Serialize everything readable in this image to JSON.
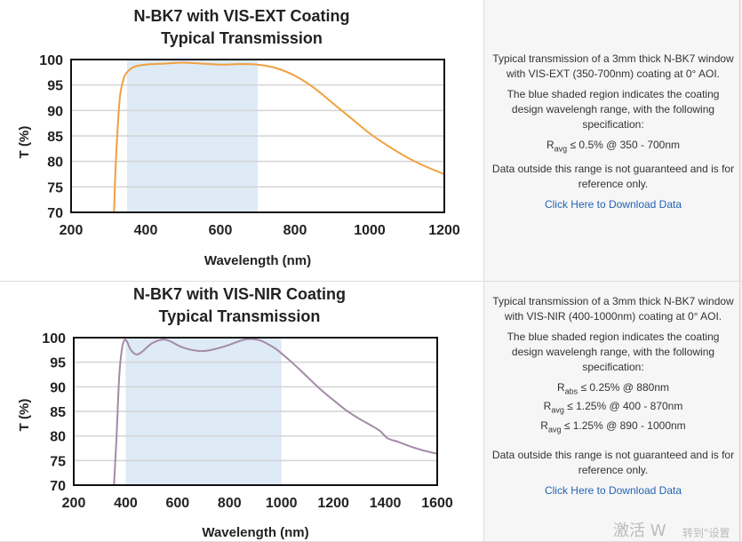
{
  "panels": [
    {
      "description": "Typical transmission of a 3mm thick N-BK7 window with VIS-EXT (350-700nm) coating at 0° AOI.",
      "shaded_note": "The blue shaded region indicates the coating design wavelengh range, with the following specification:",
      "specs": [
        {
          "sym": "R",
          "sub": "avg",
          "text": "≤ 0.5% @ 350 - 700nm"
        }
      ],
      "disclaimer": "Data outside this range is not guaranteed and is for reference only.",
      "download_link": "Click Here to Download Data"
    },
    {
      "description": "Typical transmission of a 3mm thick N-BK7 window with VIS-NIR (400-1000nm) coating at 0° AOI.",
      "shaded_note": "The blue shaded region indicates the coating design wavelengh range, with the following specification:",
      "specs": [
        {
          "sym": "R",
          "sub": "abs",
          "text": "≤ 0.25% @ 880nm"
        },
        {
          "sym": "R",
          "sub": "avg",
          "text": "≤ 1.25% @ 400 - 870nm"
        },
        {
          "sym": "R",
          "sub": "avg",
          "text": "≤ 1.25% @ 890 - 1000nm"
        }
      ],
      "disclaimer": "Data outside this range is not guaranteed and is for reference only.",
      "download_link": "Click Here to Download Data"
    }
  ],
  "watermark": {
    "line1": "激活 W",
    "line2": "转到\"设置"
  },
  "chart_data": [
    {
      "type": "line",
      "title": "N-BK7 with VIS-EXT Coating",
      "subtitle": "Typical Transmission",
      "xlabel": "Wavelength (nm)",
      "ylabel": "T (%)",
      "xlim": [
        200,
        1200
      ],
      "ylim": [
        70,
        100
      ],
      "xticks": [
        200,
        400,
        600,
        800,
        1000,
        1200
      ],
      "yticks": [
        70,
        75,
        80,
        85,
        90,
        95,
        100
      ],
      "grid": true,
      "line_color": "#f0a040",
      "shaded_region": [
        350,
        700
      ],
      "shade_color": "#deeaf6",
      "x": [
        315,
        320,
        330,
        340,
        350,
        370,
        400,
        450,
        500,
        550,
        600,
        650,
        700,
        750,
        800,
        850,
        900,
        950,
        1000,
        1050,
        1100,
        1150,
        1200
      ],
      "y": [
        70,
        80,
        92,
        96,
        97.5,
        98.6,
        99,
        99.2,
        99.4,
        99.2,
        99,
        99.1,
        99,
        98.3,
        96.8,
        94.5,
        91.5,
        88.5,
        85.5,
        83,
        80.8,
        79,
        77.5
      ]
    },
    {
      "type": "line",
      "title": "N-BK7 with VIS-NIR Coating",
      "subtitle": "Typical Transmission",
      "xlabel": "Wavelength (nm)",
      "ylabel": "T (%)",
      "xlim": [
        200,
        1600
      ],
      "ylim": [
        70,
        100
      ],
      "xticks": [
        200,
        400,
        600,
        800,
        1000,
        1200,
        1400,
        1600
      ],
      "yticks": [
        70,
        75,
        80,
        85,
        90,
        95,
        100
      ],
      "grid": true,
      "line_color": "#a48aa8",
      "shaded_region": [
        400,
        1000
      ],
      "shade_color": "#deeaf6",
      "x": [
        355,
        365,
        375,
        385,
        395,
        405,
        420,
        440,
        460,
        500,
        540,
        570,
        620,
        680,
        720,
        780,
        850,
        880,
        920,
        970,
        1000,
        1050,
        1100,
        1150,
        1200,
        1250,
        1300,
        1350,
        1380,
        1410,
        1450,
        1500,
        1550,
        1600
      ],
      "y": [
        70,
        80,
        92,
        97.5,
        99.5,
        99.2,
        97.5,
        96.6,
        97,
        98.8,
        99.6,
        99.3,
        98,
        97.3,
        97.4,
        98.2,
        99.5,
        99.7,
        99.4,
        98,
        96.8,
        94.5,
        92,
        89.5,
        87.3,
        85.2,
        83.5,
        82,
        81,
        79.5,
        78.8,
        77.8,
        77,
        76.4
      ]
    }
  ]
}
